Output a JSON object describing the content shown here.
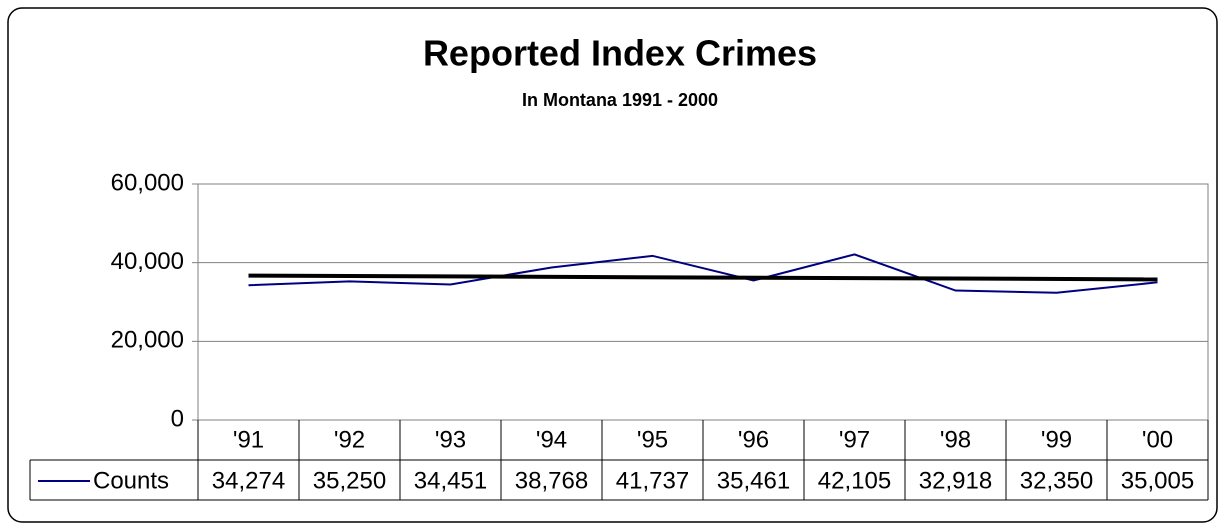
{
  "chart_data": {
    "type": "line",
    "title": "Reported Index Crimes",
    "subtitle": "In Montana 1991 - 2000",
    "categories": [
      "'91",
      "'92",
      "'93",
      "'94",
      "'95",
      "'96",
      "'97",
      "'98",
      "'99",
      "'00"
    ],
    "series": [
      {
        "name": "Counts",
        "color": "#000080",
        "values": [
          34274,
          35250,
          34451,
          38768,
          41737,
          35461,
          42105,
          32918,
          32350,
          35005
        ],
        "value_labels": [
          "34,274",
          "35,250",
          "34,451",
          "38,768",
          "41,737",
          "35,461",
          "42,105",
          "32,918",
          "32,350",
          "35,005"
        ]
      }
    ],
    "trendline": {
      "color": "#000000",
      "values": [
        36713,
        35750
      ]
    },
    "ylim": [
      0,
      60000
    ],
    "yticks": [
      0,
      {
        "value": 20000,
        "label": "20,000"
      },
      {
        "value": 40000,
        "label": "40,000"
      },
      {
        "value": 60000,
        "label": "60,000"
      }
    ],
    "grid": true
  }
}
